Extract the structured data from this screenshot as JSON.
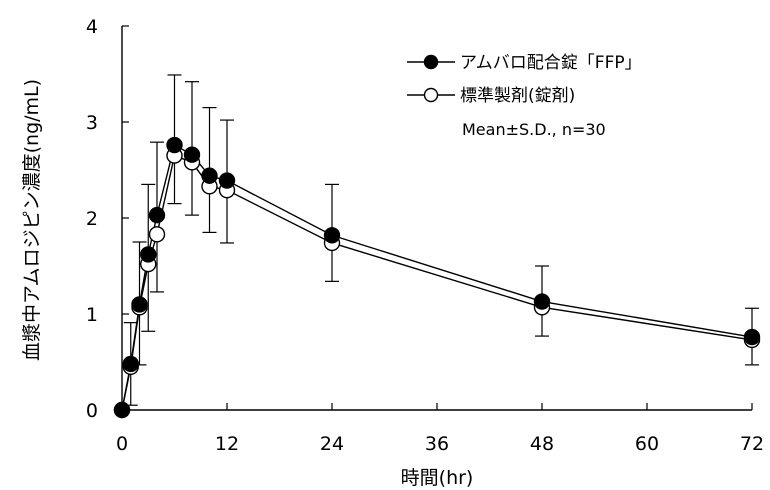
{
  "chart_data": {
    "type": "line",
    "xlabel": "時間(hr)",
    "ylabel": "血漿中アムロジピン濃度(ng/mL)",
    "xlim": [
      0,
      72
    ],
    "ylim": [
      0,
      4
    ],
    "xticks": [
      0,
      12,
      24,
      36,
      48,
      60,
      72
    ],
    "yticks": [
      0,
      1,
      2,
      3,
      4
    ],
    "grid": false,
    "legend_position": "top-right",
    "note": "Mean±S.D., n=30",
    "x": [
      0,
      1,
      2,
      3,
      4,
      6,
      8,
      10,
      12,
      24,
      48,
      72
    ],
    "series": [
      {
        "name": "アムバロ配合錠「FFP」",
        "marker": "filled-circle",
        "color": "#000000",
        "values": [
          0,
          0.48,
          1.1,
          1.62,
          2.03,
          2.76,
          2.66,
          2.44,
          2.39,
          1.82,
          1.13,
          0.76
        ],
        "sd": [
          0,
          0.43,
          0.65,
          0.73,
          0.76,
          0.73,
          0.76,
          0.71,
          0.63,
          0.53,
          0.37,
          0.3
        ]
      },
      {
        "name": "標準製剤(錠剤)",
        "marker": "open-circle",
        "color": "#000000",
        "values": [
          0,
          0.45,
          1.07,
          1.52,
          1.83,
          2.65,
          2.58,
          2.33,
          2.29,
          1.74,
          1.07,
          0.73
        ],
        "sd": [
          0,
          0.4,
          0.6,
          0.7,
          0.6,
          0.5,
          0.55,
          0.48,
          0.55,
          0.4,
          0.3,
          0.26
        ]
      }
    ]
  }
}
